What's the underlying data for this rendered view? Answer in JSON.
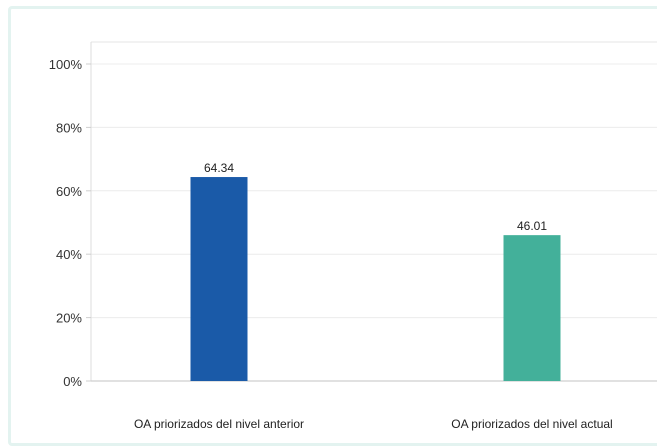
{
  "chart_data": {
    "type": "bar",
    "categories": [
      "OA priorizados del nivel anterior",
      "OA priorizados del nivel actual"
    ],
    "values": [
      64.34,
      46.01
    ],
    "data_labels": [
      "64.34",
      "46.01"
    ],
    "colors": [
      "#1a5aa8",
      "#43b09a"
    ],
    "ylim": [
      0,
      100
    ],
    "yticks": [
      0,
      20,
      40,
      60,
      80,
      100
    ],
    "ytick_labels": [
      "0%",
      "20%",
      "40%",
      "60%",
      "80%",
      "100%"
    ],
    "grid": true,
    "title": "",
    "xlabel": "",
    "ylabel": ""
  }
}
